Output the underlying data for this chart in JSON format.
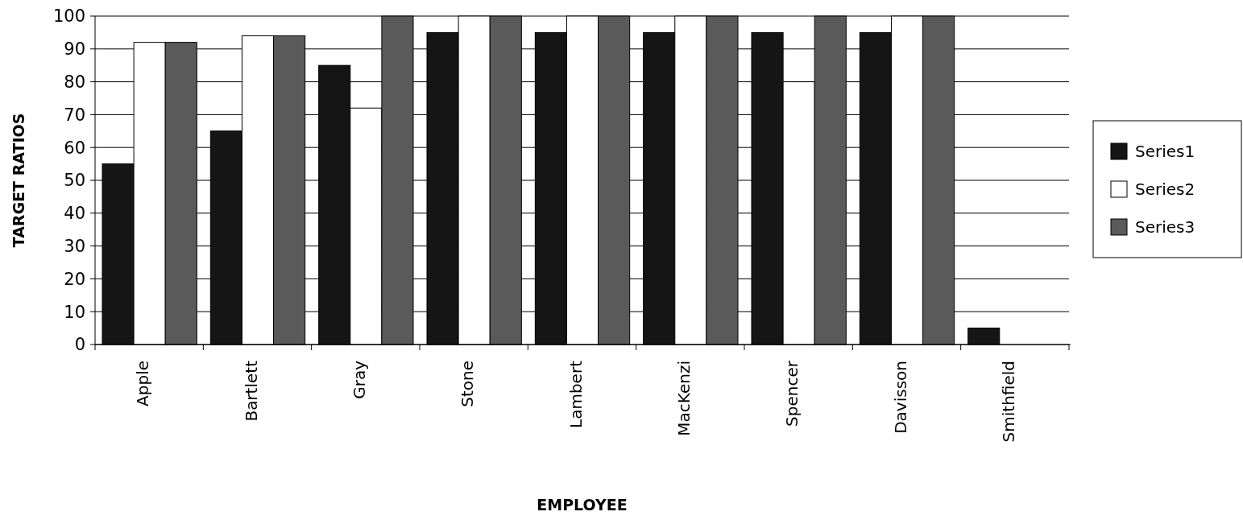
{
  "chart_data": {
    "type": "bar",
    "xlabel": "EMPLOYEE",
    "ylabel": "TARGET RATIOS",
    "categories": [
      "Apple",
      "Bartlett",
      "Gray",
      "Stone",
      "Lambert",
      "MacKenzi",
      "Spencer",
      "Davisson",
      "Smithfield"
    ],
    "series": [
      {
        "name": "Series1",
        "color": "#151515",
        "values": [
          55,
          65,
          85,
          95,
          95,
          95,
          95,
          95,
          5
        ]
      },
      {
        "name": "Series2",
        "color": "#ffffff",
        "values": [
          92,
          94,
          72,
          100,
          100,
          100,
          80,
          100,
          null
        ]
      },
      {
        "name": "Series3",
        "color": "#5a5a5a",
        "values": [
          92,
          94,
          100,
          100,
          100,
          100,
          100,
          100,
          null
        ]
      }
    ],
    "ylim": [
      0,
      100
    ],
    "yticks": [
      0,
      10,
      20,
      30,
      40,
      50,
      60,
      70,
      80,
      90,
      100
    ],
    "grid": "y",
    "legend": "right"
  }
}
